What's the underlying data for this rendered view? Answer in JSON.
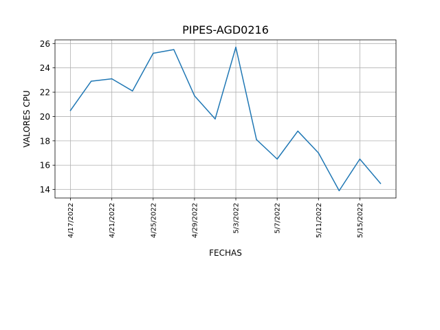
{
  "chart_data": {
    "type": "line",
    "title": "PIPES-AGD0216",
    "xlabel": "FECHAS",
    "ylabel": "VALORES CPU",
    "grid": true,
    "ylim": [
      13.3,
      26.3
    ],
    "yticks": [
      14,
      16,
      18,
      20,
      22,
      24,
      26
    ],
    "xtick_labels": [
      "4/17/2022",
      "4/21/2022",
      "4/25/2022",
      "4/29/2022",
      "5/3/2022",
      "5/7/2022",
      "5/11/2022",
      "5/15/2022"
    ],
    "series": [
      {
        "color": "#1f77b4",
        "points": [
          {
            "x": "4/17/2022",
            "y": 20.5
          },
          {
            "x": "4/19/2022",
            "y": 22.9
          },
          {
            "x": "4/21/2022",
            "y": 23.1
          },
          {
            "x": "4/23/2022",
            "y": 22.1
          },
          {
            "x": "4/25/2022",
            "y": 25.2
          },
          {
            "x": "4/27/2022",
            "y": 25.5
          },
          {
            "x": "4/29/2022",
            "y": 21.7
          },
          {
            "x": "5/1/2022",
            "y": 19.8
          },
          {
            "x": "5/3/2022",
            "y": 25.7
          },
          {
            "x": "5/5/2022",
            "y": 18.1
          },
          {
            "x": "5/7/2022",
            "y": 16.5
          },
          {
            "x": "5/9/2022",
            "y": 18.8
          },
          {
            "x": "5/11/2022",
            "y": 17.0
          },
          {
            "x": "5/13/2022",
            "y": 13.9
          },
          {
            "x": "5/15/2022",
            "y": 16.5
          },
          {
            "x": "5/17/2022",
            "y": 14.5
          }
        ]
      }
    ]
  }
}
